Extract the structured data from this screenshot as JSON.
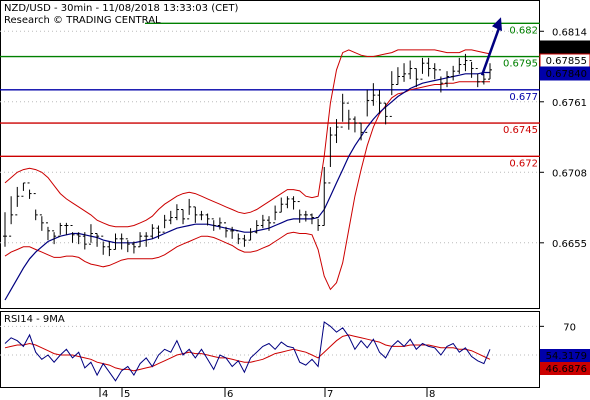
{
  "header": {
    "line1": "NZD/USD - 30min - 11/08/2018 13:33:03 (CET)",
    "line2": "Research © TRADING CENTRAL"
  },
  "colors": {
    "price": "#000000",
    "bollinger": "#cc0000",
    "ma": "#000080",
    "green": "#008000",
    "blue": "#0000aa",
    "red": "#cc0000",
    "rsi": "#000080",
    "rsi_ma": "#cc0000",
    "arrow": "#000080"
  },
  "chart_data": [
    {
      "type": "line",
      "name": "price-panel",
      "title": "NZD/USD - 30min - 11/08/2018 13:33:03 (CET)",
      "ylim": [
        0.6606,
        0.6836
      ],
      "y_ticks": [
        "0.6814",
        "0.6761",
        "0.6708",
        "0.6655"
      ],
      "x_ticks": [
        "4",
        "5",
        "6",
        "7",
        "8"
      ],
      "price_tags": [
        {
          "label": "0.6787",
          "value": 0.6787,
          "style": "black"
        },
        {
          "label": "0.67855",
          "value": 0.67855,
          "style": "red"
        },
        {
          "label": "0.67840",
          "value": 0.6784,
          "style": "blue"
        }
      ],
      "levels": [
        {
          "label": "0.682",
          "value": 0.682,
          "color": "green"
        },
        {
          "label": "0.6795",
          "value": 0.6795,
          "color": "green"
        },
        {
          "label": "0.677",
          "value": 0.677,
          "color": "blue"
        },
        {
          "label": "0.6745",
          "value": 0.6745,
          "color": "red"
        },
        {
          "label": "0.672",
          "value": 0.672,
          "color": "red"
        }
      ],
      "close": [
        0.666,
        0.6676,
        0.669,
        0.67,
        0.6692,
        0.6676,
        0.667,
        0.6664,
        0.666,
        0.6668,
        0.6668,
        0.6661,
        0.666,
        0.6654,
        0.6662,
        0.666,
        0.6652,
        0.665,
        0.6658,
        0.6658,
        0.6654,
        0.6652,
        0.666,
        0.666,
        0.6666,
        0.6663,
        0.6672,
        0.6674,
        0.668,
        0.6673,
        0.6682,
        0.6676,
        0.6676,
        0.6673,
        0.6668,
        0.667,
        0.6664,
        0.6664,
        0.6658,
        0.6657,
        0.6663,
        0.6668,
        0.6672,
        0.667,
        0.6678,
        0.6684,
        0.6688,
        0.6686,
        0.6676,
        0.6676,
        0.6674,
        0.6668,
        0.67,
        0.6736,
        0.6742,
        0.676,
        0.6748,
        0.6745,
        0.6738,
        0.6762,
        0.6766,
        0.676,
        0.675,
        0.6774,
        0.678,
        0.6782,
        0.6786,
        0.6778,
        0.679,
        0.6786,
        0.6785,
        0.6775,
        0.678,
        0.6784,
        0.6789,
        0.6792,
        0.6786,
        0.6776,
        0.6778,
        0.6785
      ],
      "high": [
        0.6678,
        0.669,
        0.6697,
        0.67,
        0.6695,
        0.668,
        0.6675,
        0.6667,
        0.6663,
        0.667,
        0.667,
        0.6663,
        0.6663,
        0.6663,
        0.6669,
        0.6662,
        0.6656,
        0.6656,
        0.6662,
        0.6662,
        0.6657,
        0.6656,
        0.6663,
        0.6663,
        0.6669,
        0.6668,
        0.6676,
        0.6679,
        0.6684,
        0.668,
        0.6688,
        0.6682,
        0.6679,
        0.6677,
        0.6672,
        0.6674,
        0.6667,
        0.6667,
        0.6662,
        0.6661,
        0.6666,
        0.6672,
        0.6676,
        0.6675,
        0.6683,
        0.6689,
        0.669,
        0.669,
        0.668,
        0.6679,
        0.6677,
        0.6673,
        0.6712,
        0.6742,
        0.6748,
        0.6767,
        0.6755,
        0.675,
        0.6745,
        0.677,
        0.6775,
        0.677,
        0.676,
        0.6784,
        0.6787,
        0.679,
        0.6792,
        0.6786,
        0.6794,
        0.6794,
        0.679,
        0.678,
        0.6784,
        0.6788,
        0.6794,
        0.6797,
        0.6791,
        0.6782,
        0.6782,
        0.679
      ],
      "low": [
        0.6652,
        0.6669,
        0.6682,
        0.6694,
        0.6688,
        0.6672,
        0.6664,
        0.6657,
        0.6654,
        0.6661,
        0.6661,
        0.6655,
        0.6654,
        0.665,
        0.6655,
        0.6652,
        0.6646,
        0.6645,
        0.665,
        0.665,
        0.6648,
        0.6647,
        0.6652,
        0.6652,
        0.6658,
        0.6658,
        0.6666,
        0.6669,
        0.6672,
        0.6669,
        0.6676,
        0.667,
        0.6672,
        0.6668,
        0.6664,
        0.6665,
        0.6659,
        0.6658,
        0.6654,
        0.6652,
        0.6657,
        0.6662,
        0.6666,
        0.6664,
        0.6672,
        0.6678,
        0.6681,
        0.668,
        0.667,
        0.6671,
        0.6669,
        0.6664,
        0.6668,
        0.6712,
        0.673,
        0.6746,
        0.674,
        0.6738,
        0.6732,
        0.675,
        0.6758,
        0.6752,
        0.6744,
        0.6766,
        0.6774,
        0.6776,
        0.6778,
        0.6772,
        0.6782,
        0.678,
        0.6778,
        0.6768,
        0.6772,
        0.6777,
        0.6782,
        0.6784,
        0.6779,
        0.6772,
        0.6774,
        0.6778
      ],
      "bb_upper": [
        0.67,
        0.6704,
        0.6708,
        0.671,
        0.6711,
        0.671,
        0.6708,
        0.6704,
        0.6698,
        0.6692,
        0.6688,
        0.6685,
        0.6682,
        0.6679,
        0.6676,
        0.6672,
        0.667,
        0.6668,
        0.6667,
        0.6667,
        0.6667,
        0.6668,
        0.667,
        0.6672,
        0.6675,
        0.668,
        0.6684,
        0.6687,
        0.669,
        0.6692,
        0.6693,
        0.6692,
        0.669,
        0.6688,
        0.6686,
        0.6684,
        0.6682,
        0.668,
        0.6678,
        0.6677,
        0.6678,
        0.668,
        0.6683,
        0.6686,
        0.6689,
        0.6692,
        0.6695,
        0.6695,
        0.6694,
        0.669,
        0.6689,
        0.669,
        0.672,
        0.676,
        0.6785,
        0.6798,
        0.68,
        0.6798,
        0.6796,
        0.6795,
        0.6795,
        0.6796,
        0.6797,
        0.6798,
        0.68,
        0.68,
        0.68,
        0.68,
        0.68,
        0.68,
        0.68,
        0.6799,
        0.6798,
        0.6798,
        0.6798,
        0.68,
        0.68,
        0.6799,
        0.6798,
        0.6797
      ],
      "bb_lower": [
        0.6645,
        0.6648,
        0.665,
        0.6652,
        0.6652,
        0.665,
        0.6648,
        0.6646,
        0.6644,
        0.6644,
        0.6645,
        0.6645,
        0.6644,
        0.6641,
        0.6639,
        0.6638,
        0.6637,
        0.6638,
        0.664,
        0.6642,
        0.6643,
        0.6643,
        0.6643,
        0.6643,
        0.6643,
        0.6644,
        0.6646,
        0.6649,
        0.6652,
        0.6654,
        0.6656,
        0.6658,
        0.666,
        0.666,
        0.6659,
        0.6657,
        0.6655,
        0.6653,
        0.665,
        0.6648,
        0.6648,
        0.6649,
        0.6651,
        0.6653,
        0.6656,
        0.6659,
        0.6662,
        0.6663,
        0.6662,
        0.6662,
        0.6661,
        0.665,
        0.663,
        0.662,
        0.6625,
        0.664,
        0.6665,
        0.669,
        0.671,
        0.6728,
        0.6742,
        0.6752,
        0.6758,
        0.6764,
        0.6767,
        0.6768,
        0.677,
        0.6771,
        0.6772,
        0.6773,
        0.6774,
        0.6774,
        0.6775,
        0.6775,
        0.6776,
        0.6776,
        0.6776,
        0.6776,
        0.6776,
        0.6776
      ],
      "ma": [
        0.6612,
        0.662,
        0.6628,
        0.6636,
        0.6643,
        0.6648,
        0.6652,
        0.6656,
        0.6658,
        0.666,
        0.6661,
        0.6662,
        0.6662,
        0.6661,
        0.666,
        0.6659,
        0.6657,
        0.6656,
        0.6655,
        0.6655,
        0.6655,
        0.6655,
        0.6656,
        0.6657,
        0.6658,
        0.666,
        0.6662,
        0.6664,
        0.6666,
        0.6667,
        0.6668,
        0.6669,
        0.6669,
        0.6669,
        0.6668,
        0.6667,
        0.6666,
        0.6665,
        0.6664,
        0.6663,
        0.6663,
        0.6664,
        0.6665,
        0.6666,
        0.6668,
        0.667,
        0.6672,
        0.6673,
        0.6673,
        0.6673,
        0.6673,
        0.6674,
        0.668,
        0.669,
        0.67,
        0.671,
        0.672,
        0.6728,
        0.6735,
        0.6742,
        0.6748,
        0.6753,
        0.6757,
        0.6761,
        0.6765,
        0.6768,
        0.6771,
        0.6773,
        0.6775,
        0.6776,
        0.6777,
        0.6778,
        0.6779,
        0.678,
        0.6781,
        0.6782,
        0.6782,
        0.6782,
        0.6783,
        0.6783
      ],
      "arrow": {
        "from": 0.6787,
        "to": 0.682
      }
    },
    {
      "type": "line",
      "name": "rsi-panel",
      "title": "RSI14 - 9MA",
      "ylim": [
        27,
        80
      ],
      "y_ticks": [
        "70"
      ],
      "tags": [
        {
          "label": "54.3179",
          "value": 54.3179,
          "style": "blue"
        },
        {
          "label": "46.6876",
          "value": 46.6876,
          "style": "red"
        }
      ],
      "rsi": [
        58,
        62,
        60,
        56,
        64,
        52,
        47,
        50,
        45,
        50,
        54,
        48,
        52,
        41,
        45,
        36,
        44,
        38,
        32,
        39,
        42,
        36,
        44,
        48,
        42,
        50,
        54,
        52,
        60,
        50,
        54,
        48,
        54,
        47,
        40,
        50,
        48,
        42,
        46,
        38,
        48,
        52,
        56,
        58,
        54,
        59,
        56,
        55,
        45,
        43,
        47,
        42,
        73,
        70,
        66,
        69,
        63,
        54,
        60,
        55,
        61,
        52,
        48,
        56,
        60,
        56,
        61,
        54,
        58,
        56,
        55,
        50,
        56,
        58,
        52,
        55,
        49,
        46,
        44,
        54
      ],
      "rsi_ma": [
        55,
        56,
        57,
        57,
        58,
        57,
        55,
        53,
        51,
        50,
        50,
        50,
        49,
        48,
        47,
        45,
        44,
        43,
        41,
        40,
        40,
        39,
        40,
        41,
        42,
        44,
        46,
        48,
        50,
        51,
        52,
        51,
        51,
        50,
        49,
        48,
        48,
        47,
        46,
        45,
        45,
        46,
        47,
        49,
        51,
        52,
        53,
        54,
        53,
        52,
        50,
        48,
        52,
        56,
        60,
        63,
        64,
        63,
        62,
        61,
        60,
        59,
        57,
        56,
        56,
        56,
        57,
        57,
        57,
        57,
        56,
        55,
        55,
        55,
        54,
        54,
        53,
        51,
        49,
        47
      ]
    }
  ]
}
